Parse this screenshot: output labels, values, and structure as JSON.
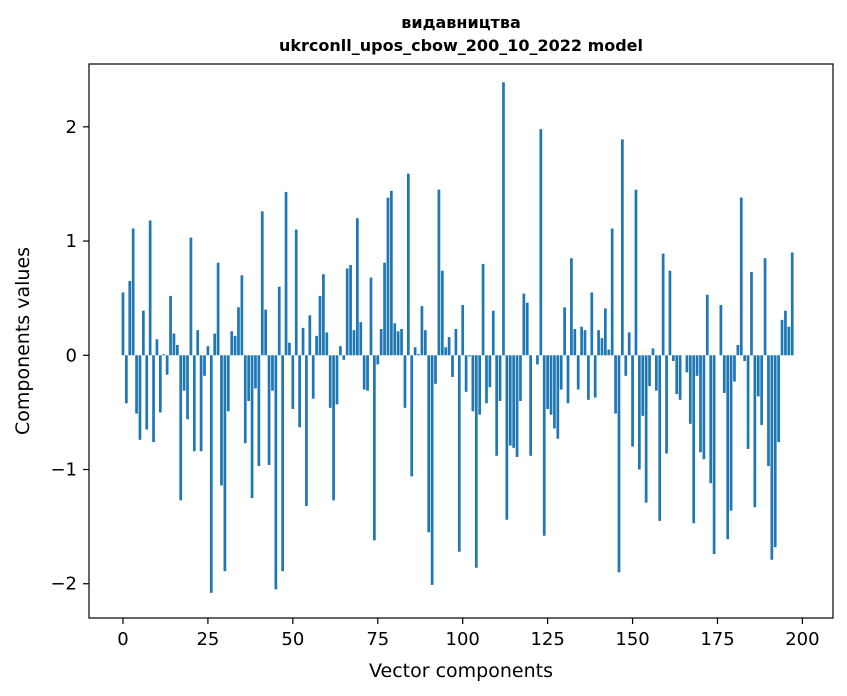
{
  "chart_data": {
    "type": "bar",
    "title": "видавництва",
    "subtitle": "ukrconll_upos_cbow_200_10_2022 model",
    "xlabel": "Vector components",
    "ylabel": "Components values",
    "xlim": [
      -10,
      209
    ],
    "ylim": [
      -2.3,
      2.55
    ],
    "xticks": [
      0,
      25,
      50,
      75,
      100,
      125,
      150,
      175,
      200
    ],
    "yticks": [
      -2,
      -1,
      0,
      1,
      2
    ],
    "ytick_labels": [
      "−2",
      "−1",
      "0",
      "1",
      "2"
    ],
    "grid": false,
    "bar_color": "#1f77b4",
    "values": [
      0.55,
      -0.42,
      0.65,
      1.11,
      -0.51,
      -0.74,
      0.39,
      -0.65,
      1.18,
      -0.76,
      0.14,
      -0.5,
      0.01,
      -0.17,
      0.52,
      0.19,
      0.09,
      -1.27,
      -0.31,
      -0.56,
      1.03,
      -0.84,
      0.22,
      -0.84,
      -0.18,
      0.08,
      -2.08,
      0.19,
      0.81,
      -1.14,
      -1.89,
      -0.49,
      0.21,
      0.17,
      0.42,
      0.7,
      -0.77,
      -0.4,
      -1.25,
      -0.29,
      -0.97,
      1.26,
      0.4,
      -0.96,
      -0.31,
      -2.05,
      0.6,
      -1.89,
      1.43,
      0.11,
      -0.47,
      1.1,
      -0.63,
      0.24,
      -1.32,
      0.35,
      -0.38,
      0.17,
      0.52,
      0.71,
      0.2,
      -0.46,
      -1.27,
      -0.43,
      0.08,
      -0.04,
      0.76,
      0.79,
      0.22,
      1.2,
      0.29,
      -0.3,
      -0.31,
      0.68,
      -1.62,
      -0.08,
      0.23,
      0.81,
      1.38,
      1.44,
      0.28,
      0.21,
      0.23,
      -0.46,
      1.59,
      -1.06,
      0.07,
      0.01,
      0.43,
      0.22,
      -1.55,
      -2.01,
      -0.25,
      1.45,
      0.74,
      0.07,
      0.16,
      -0.19,
      0.23,
      -1.72,
      0.44,
      -0.32,
      -0.01,
      -0.49,
      -1.86,
      -0.52,
      0.8,
      -0.42,
      -0.28,
      0.39,
      -0.88,
      -0.4,
      2.39,
      -1.44,
      -0.79,
      -0.81,
      -0.89,
      -0.4,
      0.54,
      0.46,
      -0.88,
      0.0,
      -0.08,
      1.98,
      -1.58,
      -0.47,
      -0.52,
      -0.64,
      -0.73,
      -0.3,
      0.42,
      -0.42,
      0.85,
      0.23,
      -0.3,
      0.25,
      0.22,
      -0.39,
      0.55,
      -0.37,
      0.22,
      0.15,
      0.41,
      0.05,
      1.11,
      -0.51,
      -1.9,
      1.89,
      -0.18,
      0.2,
      -0.8,
      1.45,
      -1.0,
      -0.53,
      -1.29,
      -0.27,
      0.06,
      -0.31,
      -1.45,
      0.89,
      -0.86,
      0.74,
      -0.05,
      -0.34,
      -0.39,
      0.0,
      -0.15,
      -0.6,
      -1.47,
      -0.18,
      -0.85,
      -0.91,
      0.53,
      -1.12,
      -1.74,
      0.0,
      0.44,
      -0.33,
      -1.61,
      -1.36,
      -0.23,
      0.09,
      1.38,
      -0.05,
      -0.82,
      0.73,
      -1.33,
      -0.36,
      -0.61,
      0.85,
      -0.97,
      -1.79,
      -1.68,
      -0.76,
      0.31,
      0.39,
      0.25,
      0.9
    ]
  }
}
